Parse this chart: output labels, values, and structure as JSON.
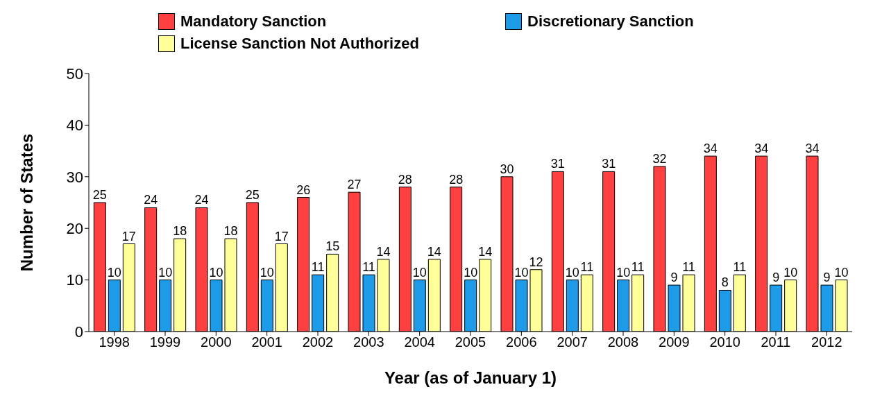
{
  "chart_data": {
    "type": "bar",
    "xlabel": "Year (as of January 1)",
    "ylabel": "Number of States",
    "categories": [
      "1998",
      "1999",
      "2000",
      "2001",
      "2002",
      "2003",
      "2004",
      "2005",
      "2006",
      "2007",
      "2008",
      "2009",
      "2010",
      "2011",
      "2012"
    ],
    "series": [
      {
        "name": "Mandatory Sanction",
        "color": "#ff4040",
        "values": [
          25,
          24,
          24,
          25,
          26,
          27,
          28,
          28,
          30,
          31,
          31,
          32,
          34,
          34,
          34
        ]
      },
      {
        "name": "Discretionary Sanction",
        "color": "#1e9be8",
        "values": [
          10,
          10,
          10,
          10,
          11,
          11,
          10,
          10,
          10,
          10,
          10,
          9,
          8,
          9,
          9
        ]
      },
      {
        "name": "License Sanction Not Authorized",
        "color": "#ffff99",
        "values": [
          17,
          18,
          18,
          17,
          15,
          14,
          14,
          14,
          12,
          11,
          11,
          11,
          11,
          10,
          10
        ]
      }
    ],
    "ylim": [
      0,
      50
    ],
    "yticks": [
      0,
      10,
      20,
      30,
      40,
      50
    ],
    "grid": false,
    "legend": "top",
    "data_labels": true
  }
}
